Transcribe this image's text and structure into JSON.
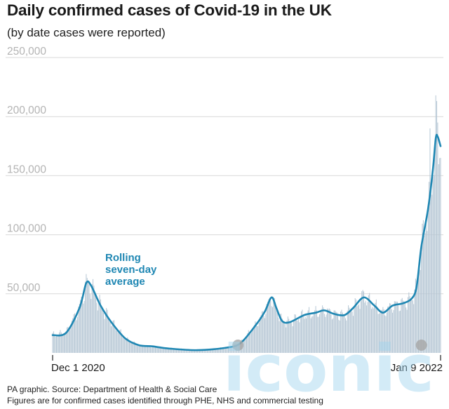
{
  "chart_data": {
    "type": "bar",
    "title": "Daily confirmed cases of Covid-19 in the UK",
    "subtitle": "(by date cases were reported)",
    "xlabel": "",
    "ylabel": "",
    "x_start_label": "Dec 1 2020",
    "x_end_label": "Jan 9 2022",
    "ylim": [
      0,
      250000
    ],
    "yticks": [
      50000,
      100000,
      150000,
      200000,
      250000
    ],
    "ytick_labels": [
      "50,000",
      "100,000",
      "150,000",
      "200,000",
      "250,000"
    ],
    "grid": true,
    "annotation": {
      "lines": [
        "Rolling",
        "seven-day",
        "average"
      ]
    },
    "series": [
      {
        "name": "Rolling seven-day average",
        "type": "line",
        "color": "#1f87b3",
        "dates": [
          "2020-12-01",
          "2020-12-15",
          "2020-12-29",
          "2021-01-05",
          "2021-01-10",
          "2021-01-20",
          "2021-02-01",
          "2021-02-15",
          "2021-03-01",
          "2021-03-15",
          "2021-04-01",
          "2021-05-01",
          "2021-06-01",
          "2021-06-15",
          "2021-07-01",
          "2021-07-10",
          "2021-07-17",
          "2021-07-22",
          "2021-07-28",
          "2021-08-05",
          "2021-08-20",
          "2021-09-01",
          "2021-09-10",
          "2021-09-20",
          "2021-10-01",
          "2021-10-10",
          "2021-10-21",
          "2021-11-01",
          "2021-11-10",
          "2021-11-20",
          "2021-12-01",
          "2021-12-10",
          "2021-12-15",
          "2021-12-20",
          "2021-12-27",
          "2022-01-01",
          "2022-01-04",
          "2022-01-06",
          "2022-01-09"
        ],
        "values": [
          15000,
          17000,
          38000,
          59000,
          57000,
          40000,
          25000,
          12000,
          6500,
          5500,
          3700,
          2300,
          4500,
          8500,
          24000,
          35000,
          47000,
          38000,
          27000,
          26000,
          32000,
          34000,
          36000,
          33000,
          32000,
          38000,
          47000,
          40000,
          34000,
          40000,
          42000,
          46000,
          56000,
          90000,
          122000,
          155000,
          182000,
          183000,
          175000
        ]
      },
      {
        "name": "Daily confirmed cases",
        "type": "bar",
        "color": "#b5c6d4",
        "dates": [
          "2021-10-21",
          "2021-12-29",
          "2022-01-04",
          "2022-01-06"
        ],
        "values": [
          52000,
          190000,
          218000,
          195000
        ]
      }
    ]
  },
  "footer": {
    "source": "PA graphic. Source: Department of Health & Social Care",
    "note": "Figures are for confirmed cases identified through PHE, NHS and commercial testing"
  },
  "watermark": "iconic",
  "colors": {
    "line": "#1f87b3",
    "bars": "#b5c6d4",
    "grid": "#d9d9d9"
  }
}
